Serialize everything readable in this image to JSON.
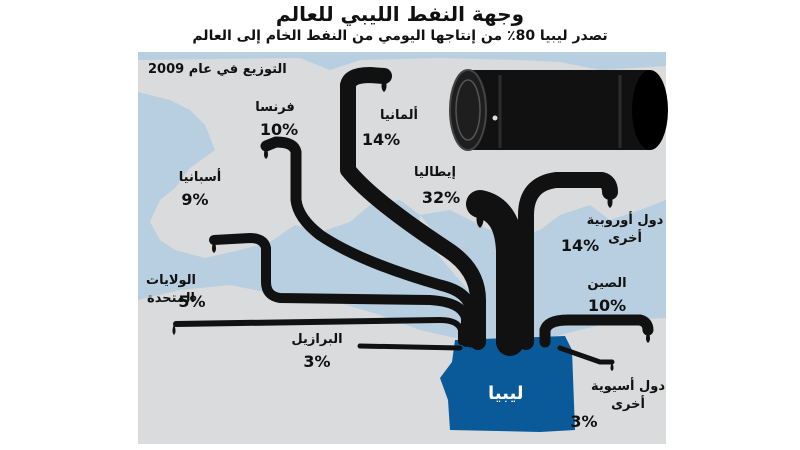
{
  "title": "وجهة النفط الليبي للعالم",
  "subtitle": "تصدر ليبيا 80٪ من إنتاجها اليومي من النفط الخام إلى العالم",
  "year_note": "التوزيع في عام 2009",
  "source_country": "ليبيا",
  "colors": {
    "sea": "#b7cfe0",
    "land": "#d9dbdc",
    "pipe": "#111111",
    "libya": "#0a5a9a"
  },
  "destinations": [
    {
      "name": "ألمانيا",
      "share": "14%"
    },
    {
      "name": "فرنسا",
      "share": "10%"
    },
    {
      "name": "أسبانيا",
      "share": "9%"
    },
    {
      "name": "الولايات\nالمتحدة",
      "share": "5%"
    },
    {
      "name": "البرازيل",
      "share": "3%"
    },
    {
      "name": "إيطاليا",
      "share": "32%"
    },
    {
      "name": "دول أوروبية\nأخرى",
      "share": "14%"
    },
    {
      "name": "الصين",
      "share": "10%"
    },
    {
      "name": "دول أسيوية\nأخرى",
      "share": "3%"
    }
  ]
}
